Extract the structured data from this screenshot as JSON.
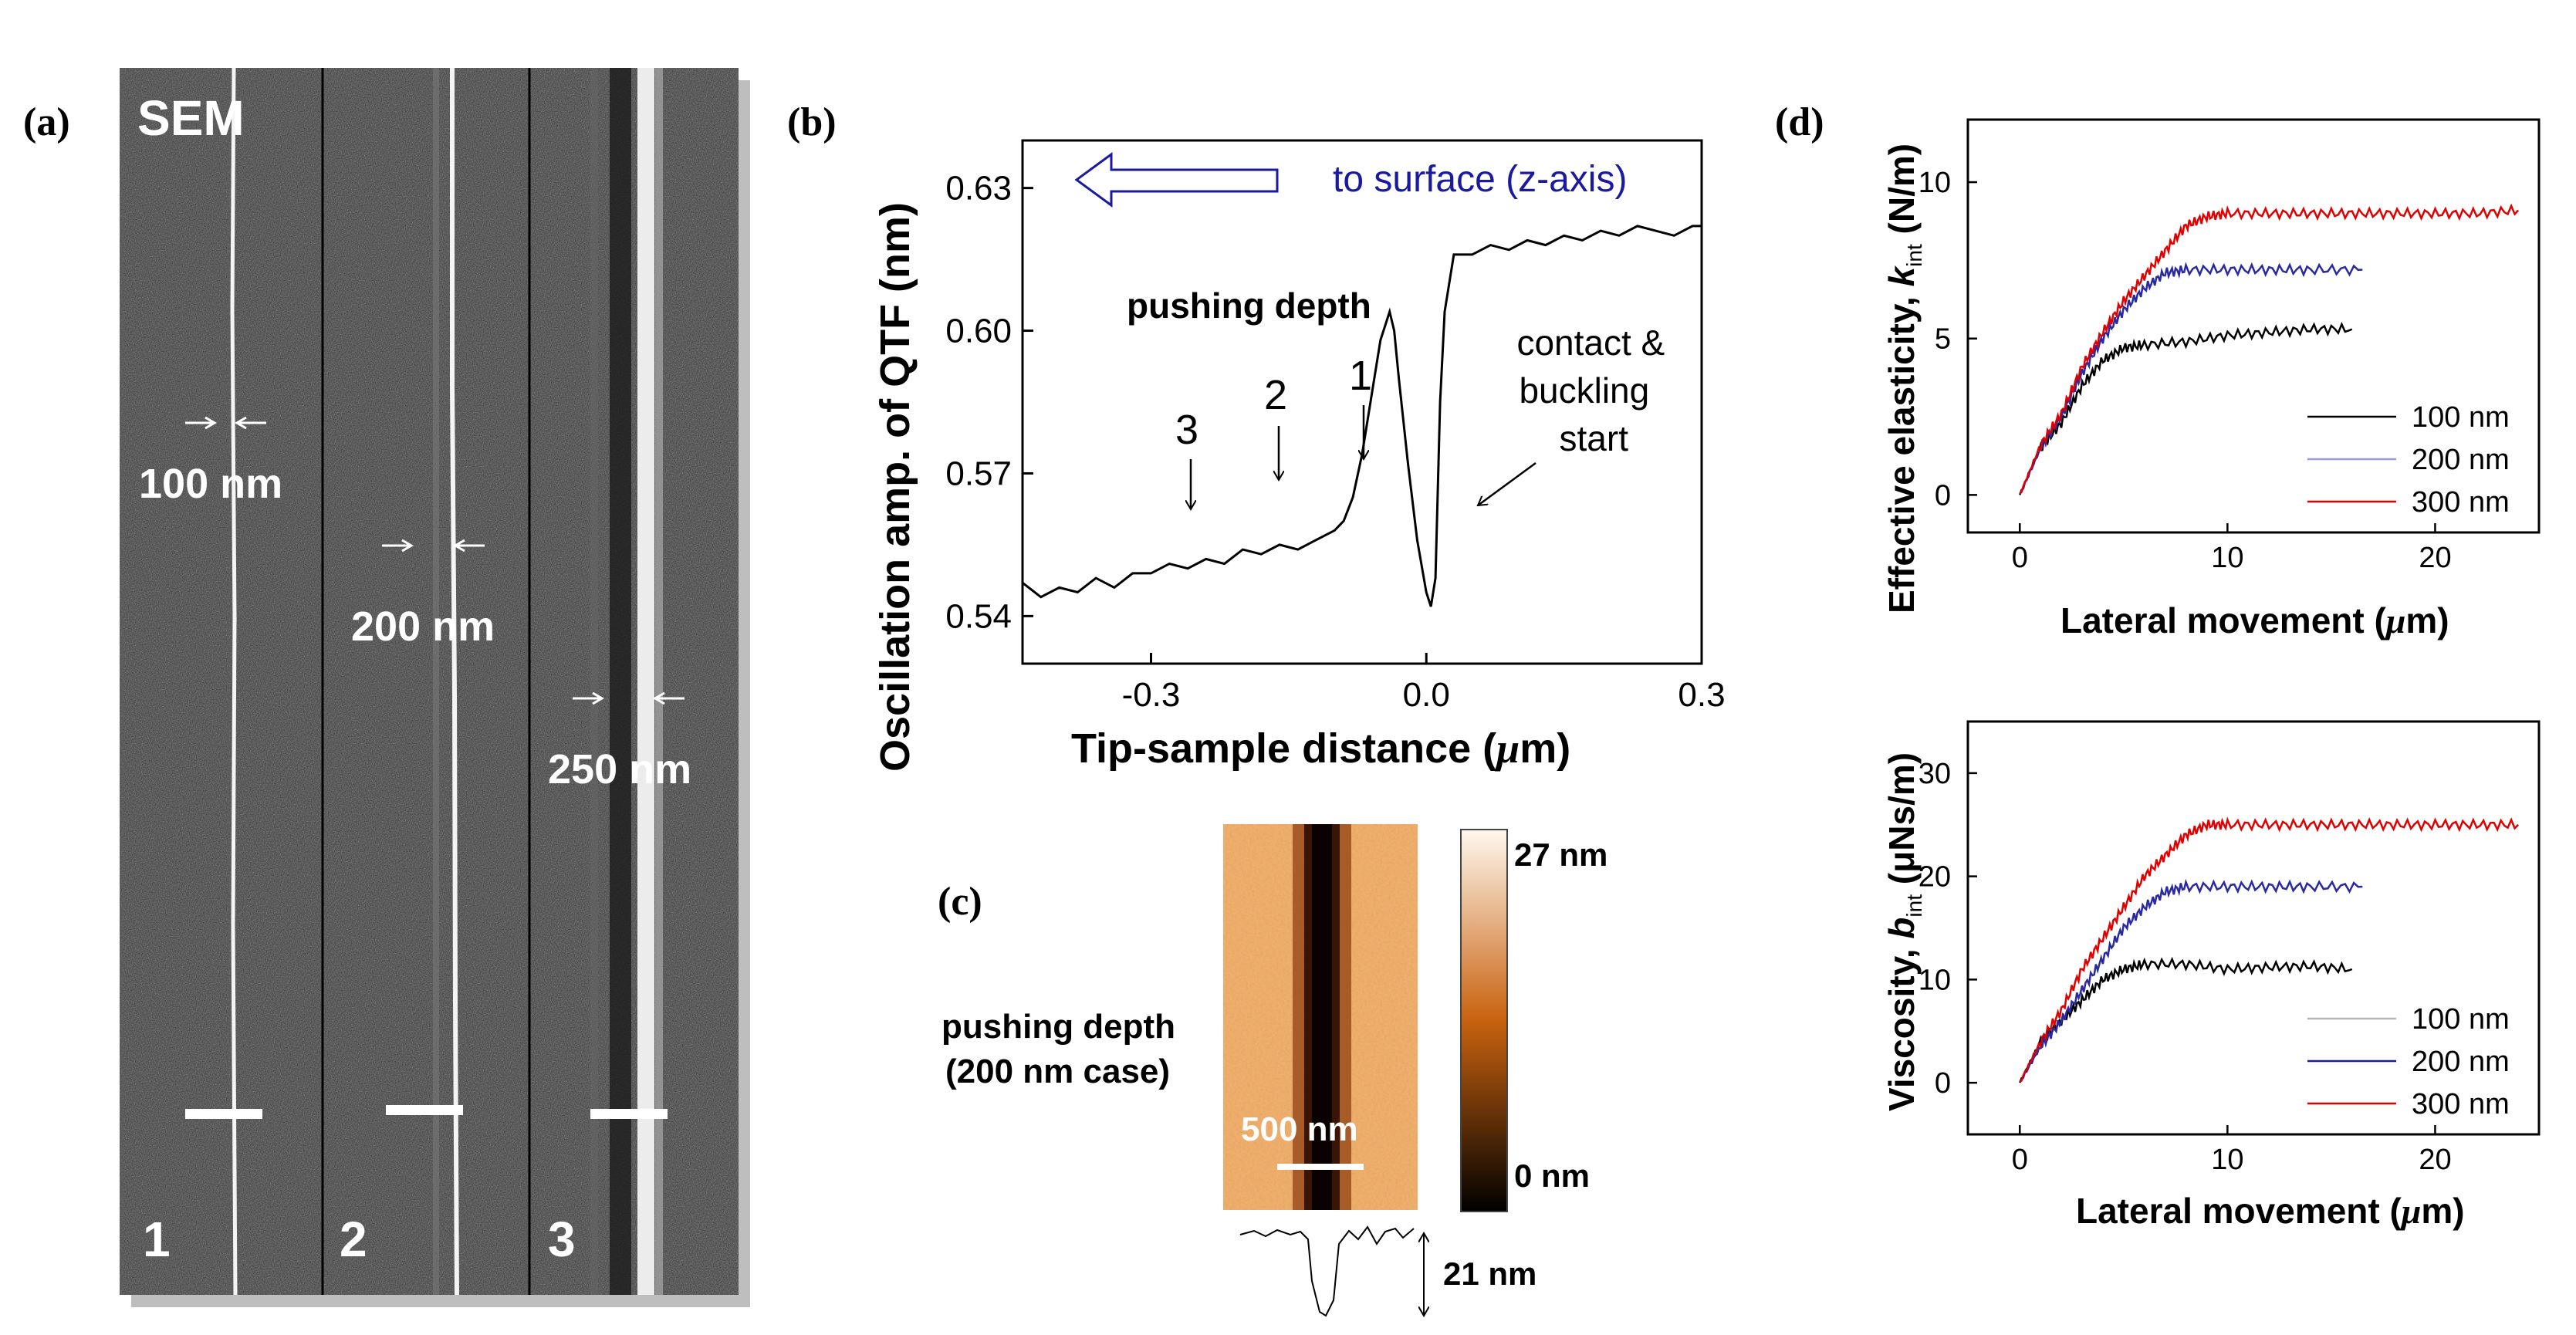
{
  "panel_labels": {
    "a": "(a)",
    "b": "(b)",
    "c": "(c)",
    "d": "(d)"
  },
  "panel_a": {
    "title": "SEM",
    "strips": [
      {
        "number": "1",
        "width_label": "100 nm"
      },
      {
        "number": "2",
        "width_label": "200 nm"
      },
      {
        "number": "3",
        "width_label": "250 nm"
      }
    ]
  },
  "panel_b": {
    "ylabel": "Oscillation amp. of QTF (nm)",
    "xlabel_prefix": "Tip-sample distance (",
    "xlabel_mu": "μ",
    "xlabel_suffix": "m)",
    "direction_label": "to surface (z-axis)",
    "pushing_depth_label": "pushing depth",
    "marker_labels": [
      "1",
      "2",
      "3"
    ],
    "contact_label": [
      "contact &",
      "buckling",
      "start"
    ]
  },
  "panel_c": {
    "caption": [
      "pushing depth",
      "(200 nm case)"
    ],
    "scale_bar_label": "500 nm",
    "colorbar_max": "27 nm",
    "colorbar_min": "0 nm",
    "profile_label": "21 nm",
    "colors": {
      "dark": "#000000",
      "mid": "#c8620f",
      "light": "#fff8ee"
    }
  },
  "colors": {
    "navy": "#1a1a9e",
    "red": "#e00000",
    "lavender": "#9a9ad8"
  },
  "chart_data": [
    {
      "type": "line",
      "id": "qtf",
      "xlabel": "Tip-sample distance (μm)",
      "ylabel": "Oscillation amp. of QTF (nm)",
      "xlim": [
        -0.44,
        0.3
      ],
      "ylim": [
        0.53,
        0.64
      ],
      "xticks": [
        -0.3,
        0.0,
        0.3
      ],
      "xtick_labels": [
        "-0.3",
        "0.0",
        "0.3"
      ],
      "yticks": [
        0.54,
        0.57,
        0.6,
        0.63
      ],
      "ytick_labels": [
        "0.54",
        "0.57",
        "0.60",
        "0.63"
      ],
      "series": [
        {
          "name": "QTF amplitude",
          "x": [
            -0.44,
            -0.42,
            -0.4,
            -0.38,
            -0.36,
            -0.34,
            -0.32,
            -0.3,
            -0.28,
            -0.26,
            -0.24,
            -0.22,
            -0.2,
            -0.18,
            -0.16,
            -0.14,
            -0.12,
            -0.1,
            -0.09,
            -0.08,
            -0.07,
            -0.06,
            -0.05,
            -0.04,
            -0.035,
            -0.03,
            -0.02,
            -0.01,
            0.0,
            0.005,
            0.01,
            0.015,
            0.02,
            0.03,
            0.05,
            0.07,
            0.09,
            0.11,
            0.13,
            0.15,
            0.17,
            0.19,
            0.21,
            0.23,
            0.25,
            0.27,
            0.29,
            0.3
          ],
          "y": [
            0.547,
            0.544,
            0.546,
            0.545,
            0.548,
            0.546,
            0.549,
            0.549,
            0.551,
            0.55,
            0.552,
            0.551,
            0.554,
            0.553,
            0.555,
            0.554,
            0.556,
            0.558,
            0.56,
            0.565,
            0.574,
            0.586,
            0.598,
            0.604,
            0.6,
            0.59,
            0.572,
            0.556,
            0.545,
            0.542,
            0.548,
            0.585,
            0.604,
            0.616,
            0.616,
            0.618,
            0.617,
            0.619,
            0.618,
            0.62,
            0.619,
            0.621,
            0.62,
            0.622,
            0.621,
            0.62,
            0.622,
            0.622
          ]
        }
      ],
      "annotations": [
        {
          "label": "1",
          "x": -0.1
        },
        {
          "label": "2",
          "x": -0.2
        },
        {
          "label": "3",
          "x": -0.3
        },
        {
          "label": "contact & buckling start",
          "x": 0.01
        }
      ]
    },
    {
      "type": "line",
      "id": "elasticity",
      "ylabel_prefix": "Effective elasticity, ",
      "ylabel_var": "k",
      "ylabel_sub": "int",
      "ylabel_suffix": " (N/m)",
      "xlabel_prefix": "Lateral movement (",
      "xlabel_mu": "μ",
      "xlabel_suffix": "m)",
      "xlim": [
        -2.5,
        25
      ],
      "ylim": [
        -1.2,
        12
      ],
      "xticks": [
        0,
        10,
        20
      ],
      "xtick_labels": [
        "0",
        "10",
        "20"
      ],
      "yticks": [
        0,
        5,
        10
      ],
      "ytick_labels": [
        "0",
        "5",
        "10"
      ],
      "series": [
        {
          "name": "100 nm",
          "color": "#000000",
          "x": [
            0,
            1,
            2,
            3,
            4,
            5,
            6,
            8,
            10,
            12,
            14,
            16
          ],
          "y": [
            0,
            1.5,
            2.3,
            3.5,
            4.3,
            4.7,
            4.8,
            4.9,
            5.1,
            5.2,
            5.3,
            5.3
          ]
        },
        {
          "name": "200 nm",
          "color": "#2a2aa0",
          "x": [
            0,
            1,
            2,
            3,
            4,
            5,
            6,
            7,
            8,
            10,
            12,
            14,
            16.5
          ],
          "y": [
            0,
            1.5,
            2.5,
            3.9,
            5.0,
            5.9,
            6.6,
            7.1,
            7.2,
            7.2,
            7.2,
            7.2,
            7.2
          ]
        },
        {
          "name": "300 nm",
          "color": "#e00000",
          "x": [
            0,
            1,
            2,
            3,
            4,
            5,
            6,
            7,
            8,
            9,
            10,
            12,
            14,
            16,
            18,
            20,
            22,
            24
          ],
          "y": [
            0,
            1.6,
            2.6,
            4.1,
            5.2,
            6.2,
            7.0,
            7.8,
            8.6,
            8.9,
            9.0,
            9.0,
            9.0,
            9.0,
            9.0,
            9.0,
            9.0,
            9.1
          ]
        }
      ],
      "legend": "right"
    },
    {
      "type": "line",
      "id": "viscosity",
      "ylabel_prefix": "Viscosity, ",
      "ylabel_var": "b",
      "ylabel_sub": "int",
      "ylabel_suffix": " (μNs/m)",
      "xlabel_prefix": "Lateral movement (",
      "xlabel_mu": "μ",
      "xlabel_suffix": "m)",
      "xlim": [
        -2.5,
        25
      ],
      "ylim": [
        -5,
        35
      ],
      "xticks": [
        0,
        10,
        20
      ],
      "xtick_labels": [
        "0",
        "10",
        "20"
      ],
      "yticks": [
        0,
        10,
        20,
        30
      ],
      "ytick_labels": [
        "0",
        "10",
        "20",
        "30"
      ],
      "series": [
        {
          "name": "100 nm",
          "color": "#000000",
          "x": [
            0,
            1,
            2,
            3,
            4,
            5,
            6,
            8,
            10,
            12,
            14,
            16
          ],
          "y": [
            0,
            4,
            6,
            8,
            10,
            11,
            11.5,
            11.5,
            11,
            11.2,
            11.3,
            11
          ]
        },
        {
          "name": "200 nm",
          "color": "#2a2aa0",
          "x": [
            0,
            1,
            2,
            3,
            4,
            5,
            6,
            7,
            8,
            10,
            12,
            14,
            16.5
          ],
          "y": [
            0,
            3.5,
            6,
            9,
            12,
            15,
            17,
            18.5,
            19,
            19,
            19,
            19,
            19
          ]
        },
        {
          "name": "300 nm",
          "color": "#e00000",
          "x": [
            0,
            1,
            2,
            3,
            4,
            5,
            6,
            7,
            8,
            9,
            10,
            12,
            14,
            16,
            18,
            20,
            22,
            24
          ],
          "y": [
            0,
            4,
            7,
            11,
            14,
            17,
            20,
            22,
            24,
            25,
            25,
            25,
            25,
            25,
            25,
            25,
            25,
            25
          ]
        }
      ],
      "legend": "right"
    }
  ]
}
